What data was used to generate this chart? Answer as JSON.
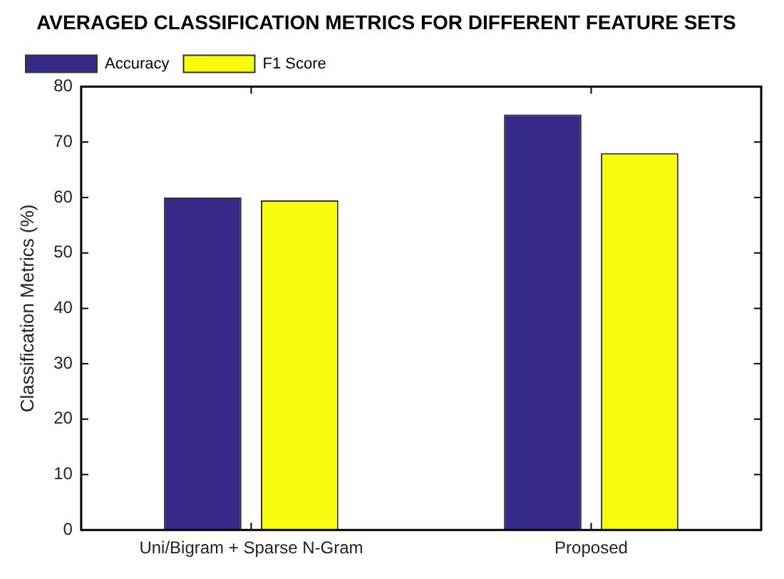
{
  "chart_data": {
    "type": "bar",
    "title": "AVERAGED CLASSIFICATION METRICS FOR DIFFERENT FEATURE SETS",
    "ylabel": "Classification Metrics (%)",
    "categories": [
      "Uni/Bigram + Sparse N-Gram",
      "Proposed"
    ],
    "series": [
      {
        "name": "Accuracy",
        "color": "#352a87",
        "values": [
          60,
          75
        ]
      },
      {
        "name": "F1 Score",
        "color": "#f9fb0e",
        "values": [
          59.5,
          68
        ]
      }
    ],
    "ylim": [
      0,
      80
    ],
    "yticks": [
      0,
      10,
      20,
      30,
      40,
      50,
      60,
      70,
      80
    ],
    "grid": false,
    "legend": "top left"
  }
}
